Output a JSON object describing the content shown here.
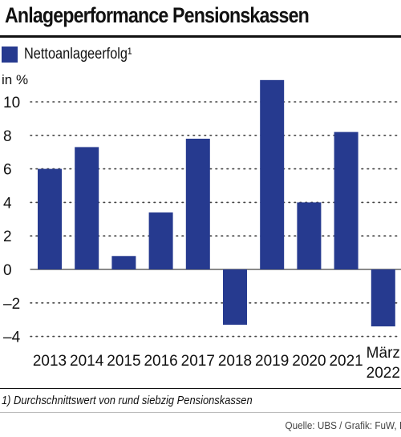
{
  "title": "Anlageperformance Pensionskassen",
  "footnote": "1) Durchschnittswert von rund siebzig Pensionskassen",
  "source": "Quelle: UBS / Grafik: FuW, II",
  "colors": {
    "bar": "#263a8f",
    "grid": "#444444",
    "text": "#111111"
  },
  "chart_data": {
    "type": "bar",
    "categories": [
      "2013",
      "2014",
      "2015",
      "2016",
      "2017",
      "2018",
      "2019",
      "2020",
      "2021",
      "März\n2022"
    ],
    "series": [
      {
        "name": "Nettoanlageerfolg¹",
        "values": [
          6.0,
          7.3,
          0.8,
          3.4,
          7.8,
          -3.3,
          11.3,
          4.0,
          8.2,
          -3.4
        ]
      }
    ],
    "ylabel": "in %",
    "yticks": [
      10,
      8,
      6,
      4,
      2,
      0,
      -2,
      -4
    ],
    "ytick_labels": [
      "10",
      "8",
      "6",
      "4",
      "2",
      "0",
      "–2",
      "–4"
    ],
    "ylim": [
      -4,
      12
    ],
    "grid": true,
    "legend": "top-left"
  }
}
